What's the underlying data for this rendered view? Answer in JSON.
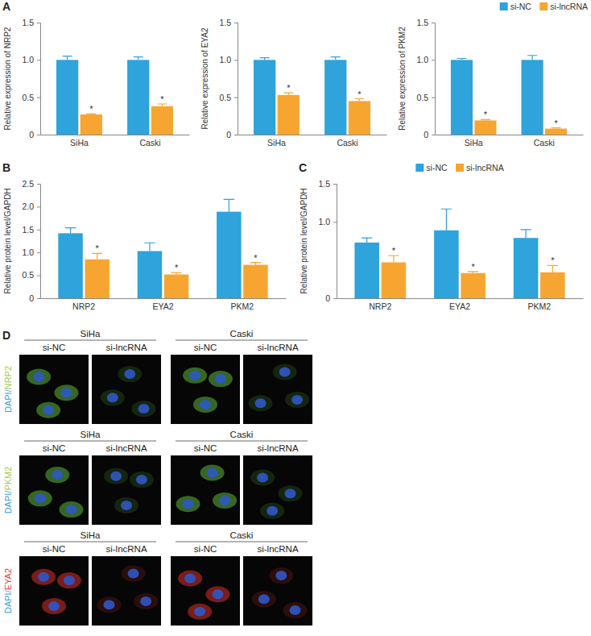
{
  "chart_data": [
    {
      "type": "bar",
      "panel_label": "A",
      "y_label": "Relative expression of NRP2",
      "categories": [
        "SiHa",
        "Caski"
      ],
      "series": [
        {
          "name": "si-NC",
          "color": "#2ea3dc",
          "values": [
            1.0,
            1.0
          ],
          "errors": [
            0.05,
            0.04
          ]
        },
        {
          "name": "si-lncRNA",
          "color": "#f7a531",
          "values": [
            0.27,
            0.38
          ],
          "errors": [
            0.01,
            0.03
          ]
        }
      ],
      "ylim": [
        0,
        1.5
      ],
      "yticks": [
        0,
        0.5,
        {
          "value": 1,
          "label": "1.0"
        },
        1.5
      ],
      "annotations": [
        {
          "text": "*",
          "series": 1,
          "category": 0
        },
        {
          "text": "*",
          "series": 1,
          "category": 1
        }
      ]
    },
    {
      "type": "bar",
      "y_label": "Relative expression of EYA2",
      "categories": [
        "SiHa",
        "Caski"
      ],
      "series": [
        {
          "name": "si-NC",
          "color": "#2ea3dc",
          "values": [
            1.0,
            1.0
          ],
          "errors": [
            0.03,
            0.04
          ]
        },
        {
          "name": "si-lncRNA",
          "color": "#f7a531",
          "values": [
            0.53,
            0.45
          ],
          "errors": [
            0.03,
            0.03
          ]
        }
      ],
      "ylim": [
        0,
        1.5
      ],
      "yticks": [
        0,
        0.5,
        {
          "value": 1,
          "label": "1.0"
        },
        1.5
      ],
      "annotations": [
        {
          "text": "*",
          "series": 1,
          "category": 0
        },
        {
          "text": "*",
          "series": 1,
          "category": 1
        }
      ]
    },
    {
      "type": "bar",
      "y_label": "Relative expression of PKM2",
      "categories": [
        "SiHa",
        "Caski"
      ],
      "series": [
        {
          "name": "si-NC",
          "color": "#2ea3dc",
          "values": [
            1.0,
            1.0
          ],
          "errors": [
            0.02,
            0.06
          ]
        },
        {
          "name": "si-lncRNA",
          "color": "#f7a531",
          "values": [
            0.19,
            0.08
          ],
          "errors": [
            0.01,
            0.01
          ]
        }
      ],
      "ylim": [
        0,
        1.5
      ],
      "yticks": [
        0,
        0.5,
        {
          "value": 1,
          "label": "1.0"
        },
        1.5
      ],
      "legend": "upper right",
      "annotations": [
        {
          "text": "*",
          "series": 1,
          "category": 0
        },
        {
          "text": "*",
          "series": 1,
          "category": 1
        }
      ]
    },
    {
      "type": "bar",
      "panel_label": "B",
      "y_label": "Relative protein level/GAPDH",
      "categories": [
        "NRP2",
        "EYA2",
        "PKM2"
      ],
      "series": [
        {
          "name": "si-NC",
          "color": "#2ea3dc",
          "values": [
            1.42,
            1.03,
            1.89
          ],
          "errors": [
            0.12,
            0.18,
            0.27
          ]
        },
        {
          "name": "si-lncRNA",
          "color": "#f7a531",
          "values": [
            0.85,
            0.52,
            0.73
          ],
          "errors": [
            0.13,
            0.04,
            0.05
          ]
        }
      ],
      "ylim": [
        0,
        2.5
      ],
      "yticks": [
        0,
        0.5,
        {
          "value": 1,
          "label": "1.0"
        },
        1.5,
        {
          "value": 2,
          "label": "2.0"
        },
        2.5
      ],
      "annotations": [
        {
          "text": "*",
          "series": 1,
          "category": 0
        },
        {
          "text": "*",
          "series": 1,
          "category": 1
        },
        {
          "text": "*",
          "series": 1,
          "category": 2
        }
      ]
    },
    {
      "type": "bar",
      "panel_label": "C",
      "y_label": "Relative protein level/GAPDH",
      "categories": [
        "NRP2",
        "EYA2",
        "PKM2"
      ],
      "series": [
        {
          "name": "si-NC",
          "color": "#2ea3dc",
          "values": [
            0.73,
            0.89,
            0.79
          ],
          "errors": [
            0.06,
            0.28,
            0.11
          ]
        },
        {
          "name": "si-lncRNA",
          "color": "#f7a531",
          "values": [
            0.47,
            0.33,
            0.34
          ],
          "errors": [
            0.09,
            0.02,
            0.09
          ]
        }
      ],
      "ylim": [
        0,
        1.5
      ],
      "yticks": [
        0,
        {
          "value": 1,
          "label": "1.0"
        },
        1.5
      ],
      "legend": "upper center",
      "annotations": [
        {
          "text": "*",
          "series": 1,
          "category": 0
        },
        {
          "text": "*",
          "series": 1,
          "category": 1
        },
        {
          "text": "*",
          "series": 1,
          "category": 2
        }
      ]
    }
  ],
  "figure_d": {
    "panel_label": "D",
    "rows": [
      {
        "labels": [
          {
            "text": "DAPI/",
            "color": "#3aa0dc"
          },
          {
            "text": "NRP2",
            "color": "#a8c84a"
          }
        ],
        "stain_color": "#5fb83a",
        "groups": [
          {
            "name": "SiHa",
            "conditions": [
              "si-NC",
              "si-lncRNA"
            ]
          },
          {
            "name": "Caski",
            "conditions": [
              "si-NC",
              "si-lncRNA"
            ]
          }
        ]
      },
      {
        "labels": [
          {
            "text": "DAPI/",
            "color": "#3aa0dc"
          },
          {
            "text": "PKM2",
            "color": "#a8c84a"
          }
        ],
        "stain_color": "#5fb83a",
        "groups": [
          {
            "name": "SiHa",
            "conditions": [
              "si-NC",
              "si-lncRNA"
            ]
          },
          {
            "name": "Caski",
            "conditions": [
              "si-NC",
              "si-lncRNA"
            ]
          }
        ]
      },
      {
        "labels": [
          {
            "text": "DAPI/",
            "color": "#3aa0dc"
          },
          {
            "text": "EYA2",
            "color": "#e0403a"
          }
        ],
        "stain_color": "#d8302c",
        "groups": [
          {
            "name": "SiHa",
            "conditions": [
              "si-NC",
              "si-lncRNA"
            ]
          },
          {
            "name": "Caski",
            "conditions": [
              "si-NC",
              "si-lncRNA"
            ]
          }
        ]
      }
    ]
  }
}
